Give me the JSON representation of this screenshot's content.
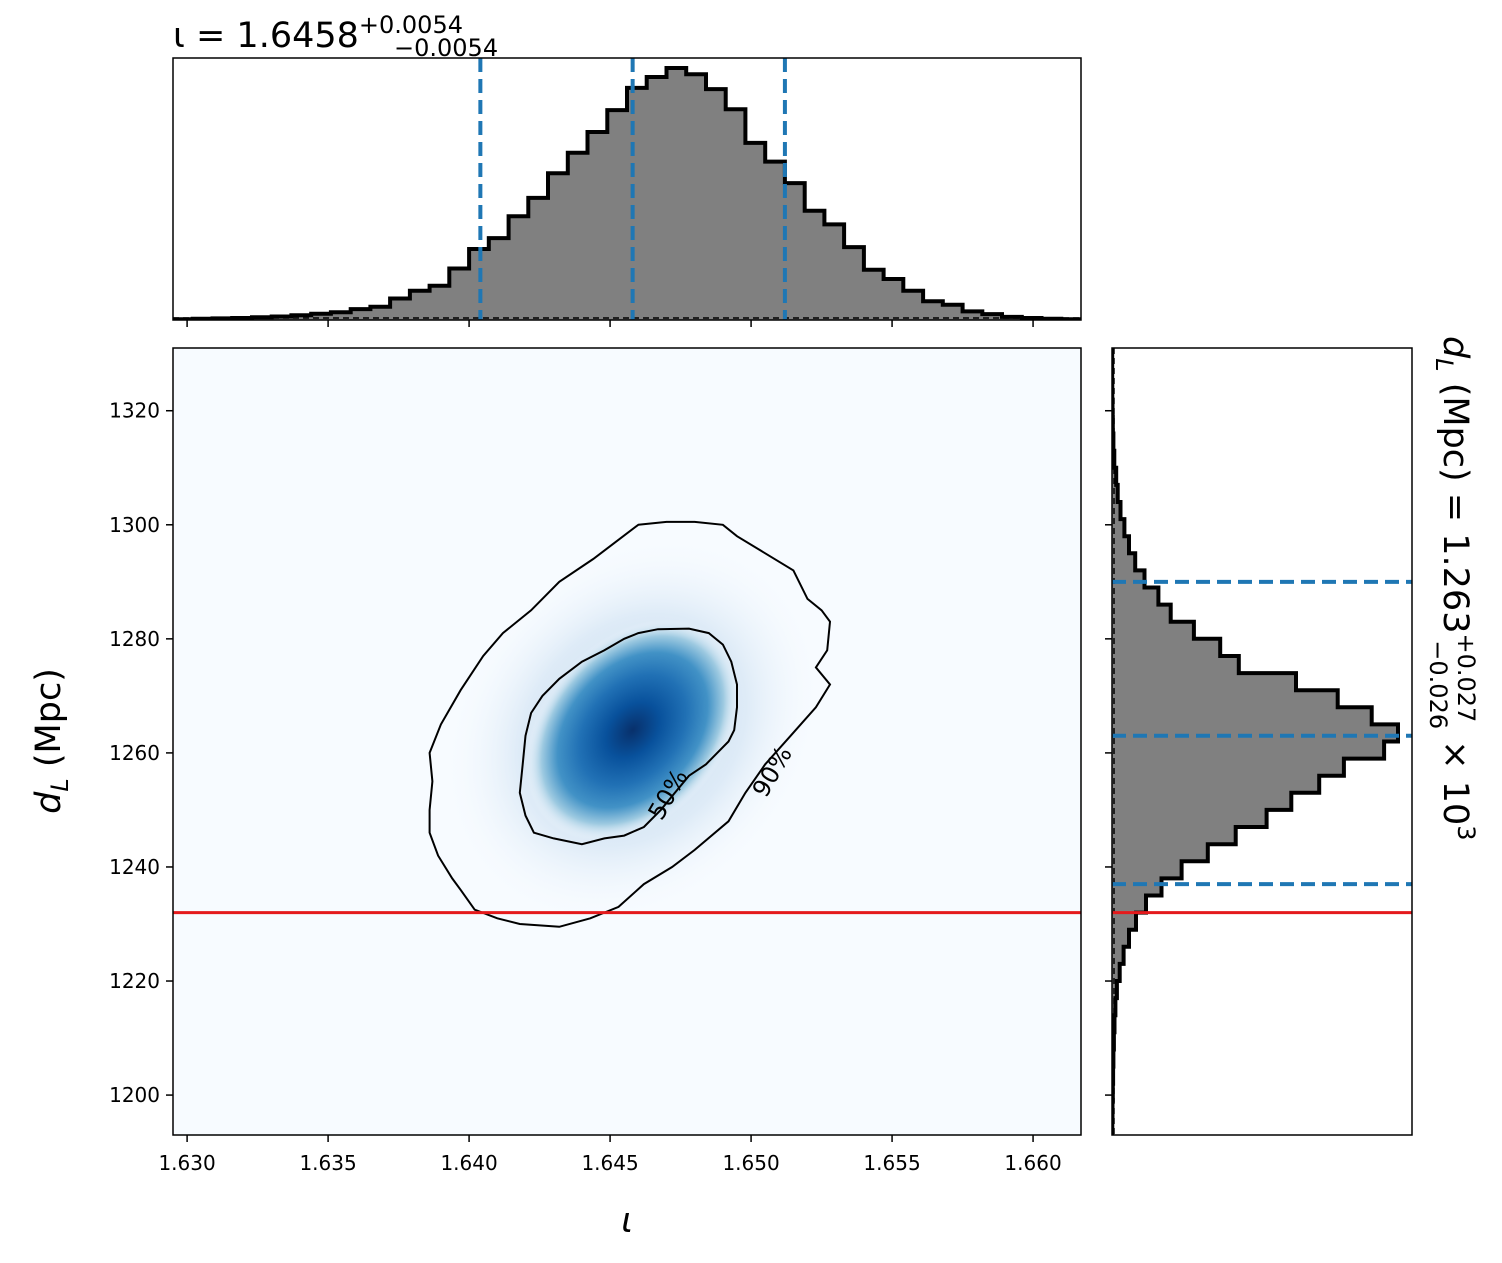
{
  "chart_data": {
    "type": "corner",
    "top_marginal": {
      "type": "step-histogram",
      "title": {
        "prefix": "ι = 1.6458",
        "sup": "+0.0054",
        "sub": "−0.0054"
      },
      "bin_edges": [
        1.6295,
        1.6302,
        1.6309,
        1.6316,
        1.6323,
        1.633,
        1.6337,
        1.6344,
        1.6351,
        1.6358,
        1.6365,
        1.6372,
        1.6379,
        1.6386,
        1.6393,
        1.64,
        1.6407,
        1.6414,
        1.6421,
        1.6428,
        1.6435,
        1.6442,
        1.6449,
        1.6456,
        1.6463,
        1.647,
        1.6477,
        1.6484,
        1.6491,
        1.6498,
        1.6505,
        1.6512,
        1.6519,
        1.6526,
        1.6533,
        1.654,
        1.6547,
        1.6554,
        1.6561,
        1.6568,
        1.6575,
        1.6582,
        1.6589,
        1.6596,
        1.6603,
        1.661,
        1.6617
      ],
      "counts": [
        0.2,
        0.3,
        0.4,
        0.5,
        0.7,
        0.9,
        1.2,
        1.6,
        2.0,
        2.8,
        3.4,
        5.5,
        7.5,
        8.8,
        13.2,
        18.2,
        21.0,
        26.6,
        31.3,
        37.6,
        42.9,
        48.2,
        53.8,
        59.5,
        62.3,
        64.6,
        63.0,
        59.2,
        54.0,
        45.4,
        40.6,
        35.1,
        28.0,
        24.5,
        18.7,
        12.9,
        10.5,
        7.5,
        4.8,
        3.9,
        2.2,
        1.5,
        0.8,
        0.5,
        0.3,
        0.2
      ],
      "quantile_lines": [
        1.6404,
        1.6458,
        1.6512
      ]
    },
    "joint": {
      "type": "2d-density-contour",
      "xlabel": "ι",
      "ylabel": "dL (Mpc)",
      "xlim": [
        1.6295,
        1.6617
      ],
      "ylim": [
        1193,
        1331
      ],
      "xticks": [
        "1.630",
        "1.635",
        "1.640",
        "1.645",
        "1.650",
        "1.655",
        "1.660"
      ],
      "xtick_values": [
        1.63,
        1.635,
        1.64,
        1.645,
        1.65,
        1.655,
        1.66
      ],
      "yticks": [
        "1200",
        "1220",
        "1240",
        "1260",
        "1280",
        "1300",
        "1320"
      ],
      "ytick_values": [
        1200,
        1220,
        1240,
        1260,
        1280,
        1300,
        1320
      ],
      "density_peak": {
        "x": 1.6458,
        "y": 1264
      },
      "contours": [
        {
          "label": "50%",
          "level": 0.5,
          "points": [
            [
              1.6467,
              1281.7
            ],
            [
              1.6478,
              1281.8
            ],
            [
              1.6485,
              1281
            ],
            [
              1.649,
              1279
            ],
            [
              1.6493,
              1276
            ],
            [
              1.6495,
              1272
            ],
            [
              1.6495,
              1268
            ],
            [
              1.6494,
              1264
            ],
            [
              1.6492,
              1262
            ],
            [
              1.6488,
              1260
            ],
            [
              1.6484,
              1258
            ],
            [
              1.6478,
              1256
            ],
            [
              1.6473,
              1253
            ],
            [
              1.6468,
              1250
            ],
            [
              1.6462,
              1247
            ],
            [
              1.6455,
              1245.5
            ],
            [
              1.6448,
              1245
            ],
            [
              1.644,
              1244
            ],
            [
              1.643,
              1245
            ],
            [
              1.6423,
              1246
            ],
            [
              1.642,
              1249
            ],
            [
              1.6418,
              1253
            ],
            [
              1.6419,
              1258
            ],
            [
              1.642,
              1263
            ],
            [
              1.6422,
              1267
            ],
            [
              1.6426,
              1270
            ],
            [
              1.6432,
              1273
            ],
            [
              1.644,
              1276
            ],
            [
              1.6448,
              1278
            ],
            [
              1.6455,
              1280
            ],
            [
              1.646,
              1281
            ]
          ]
        },
        {
          "label": "90%",
          "level": 0.9,
          "points": [
            [
              1.646,
              1300
            ],
            [
              1.647,
              1300.5
            ],
            [
              1.648,
              1300.5
            ],
            [
              1.649,
              1300
            ],
            [
              1.6495,
              1298
            ],
            [
              1.6505,
              1295
            ],
            [
              1.6515,
              1292
            ],
            [
              1.652,
              1287
            ],
            [
              1.6525,
              1285
            ],
            [
              1.6528,
              1283
            ],
            [
              1.6527,
              1278
            ],
            [
              1.6523,
              1275
            ],
            [
              1.6528,
              1272
            ],
            [
              1.6523,
              1268
            ],
            [
              1.6514,
              1263
            ],
            [
              1.6505,
              1258
            ],
            [
              1.6498,
              1253
            ],
            [
              1.6492,
              1248
            ],
            [
              1.648,
              1243
            ],
            [
              1.6472,
              1240
            ],
            [
              1.6462,
              1237
            ],
            [
              1.6453,
              1233
            ],
            [
              1.6443,
              1231
            ],
            [
              1.6432,
              1229.5
            ],
            [
              1.6418,
              1230
            ],
            [
              1.641,
              1231
            ],
            [
              1.6402,
              1232.5
            ],
            [
              1.6397,
              1236
            ],
            [
              1.6394,
              1238
            ],
            [
              1.6389,
              1242
            ],
            [
              1.6386,
              1246
            ],
            [
              1.6386,
              1250
            ],
            [
              1.6387,
              1255
            ],
            [
              1.6386,
              1260
            ],
            [
              1.639,
              1265
            ],
            [
              1.6397,
              1271
            ],
            [
              1.6405,
              1277
            ],
            [
              1.6412,
              1281
            ],
            [
              1.6422,
              1285
            ],
            [
              1.6432,
              1290
            ],
            [
              1.6444,
              1294
            ],
            [
              1.6452,
              1297
            ]
          ]
        }
      ],
      "truth_line": {
        "y": 1232,
        "color": "#e41a1c"
      }
    },
    "right_marginal": {
      "type": "step-histogram",
      "orientation": "horizontal",
      "label": {
        "prefix": "dL (Mpc) = 1.263",
        "sup": "+0.027",
        "sub": "−0.026",
        "suffix": " × 10³"
      },
      "bin_edges": [
        1193,
        1196,
        1199,
        1202,
        1205,
        1208,
        1211,
        1214,
        1217,
        1220,
        1223,
        1226,
        1229,
        1232,
        1235,
        1238,
        1241,
        1244,
        1247,
        1250,
        1253,
        1256,
        1259,
        1262,
        1265,
        1268,
        1271,
        1274,
        1277,
        1280,
        1283,
        1286,
        1289,
        1292,
        1295,
        1298,
        1301,
        1304,
        1307,
        1310,
        1313,
        1316,
        1319,
        1322,
        1325,
        1328,
        1331
      ],
      "counts": [
        0.2,
        0.3,
        0.5,
        0.7,
        0.9,
        1.2,
        1.6,
        2.2,
        3.2,
        5.0,
        7.5,
        11.0,
        15.5,
        22.0,
        32.0,
        45.0,
        62.0,
        80.0,
        100.0,
        116.0,
        134.0,
        150.0,
        176.0,
        185.0,
        168.0,
        146.0,
        119.0,
        82.0,
        70.0,
        53.0,
        38.0,
        30.0,
        21.0,
        15.0,
        11.0,
        8.0,
        5.5,
        3.7,
        2.7,
        1.5,
        0.9,
        0.5,
        0.3,
        0.2,
        0.1,
        0.1
      ],
      "quantile_lines": [
        1237.0,
        1263.0,
        1290.0
      ],
      "truth_line": {
        "y": 1232,
        "color": "#e41a1c"
      }
    },
    "colors": {
      "hist_fill": "#808080",
      "hist_edge": "#000000",
      "quantile": "#1f77b4",
      "truth": "#e41a1c",
      "colormap": "Blues"
    }
  }
}
